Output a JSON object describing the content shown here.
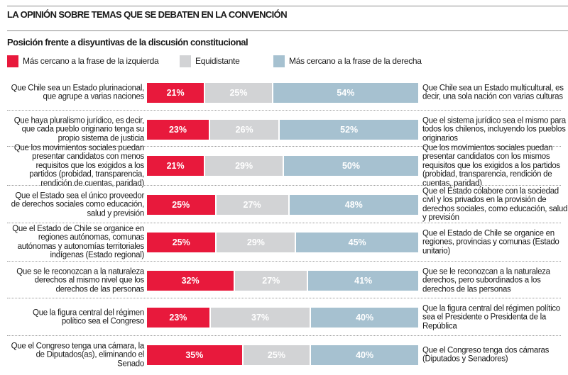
{
  "title": "LA OPINIÓN SOBRE TEMAS QUE SE DEBATEN EN LA CONVENCIÓN",
  "colors": {
    "left": "#e8193c",
    "neutral": "#d2d3d5",
    "right": "#a6c1d0"
  },
  "chart_data": {
    "type": "bar",
    "orientation": "horizontal-stacked-100",
    "title": "Posición frente a disyuntivas de la discusión constitucional",
    "legend": [
      "Más cercano a la frase de la izquierda",
      "Equidistante",
      "Más cercano a la frase de la derecha"
    ],
    "legend_placement": "top-left",
    "rows": [
      {
        "left_text": "Que Chile sea un Estado plurinacional, que agrupe a varias naciones",
        "right_text": "Que Chile sea un Estado multicultural, es decir, una sola nación con varias culturas",
        "values": [
          21,
          25,
          54
        ],
        "labels": [
          "21%",
          "25%",
          "54%"
        ]
      },
      {
        "left_text": "Que haya pluralismo jurídico, es decir, que cada pueblo originario tenga su propio sistema de justicia",
        "right_text": "Que el sistema jurídico sea el mismo para todos los chilenos, incluyendo los pueblos originarios",
        "values": [
          23,
          26,
          52
        ],
        "labels": [
          "23%",
          "26%",
          "52%"
        ]
      },
      {
        "left_text": "Que los movimientos sociales puedan presentar candidatos con menos requisitos que los exigidos a los partidos (probidad, transparencia, rendición de cuentas, paridad)",
        "right_text": "Que los movimientos sociales puedan presentar candidatos con los mismos requisitos que los exigidos a los partidos (probidad, transparencia, rendición de cuentas, paridad)",
        "values": [
          21,
          29,
          50
        ],
        "labels": [
          "21%",
          "29%",
          "50%"
        ]
      },
      {
        "left_text": "Que el Estado sea el único proveedor de derechos sociales como educación, salud y previsión",
        "right_text": "Que el Estado colabore con la sociedad civil y los privados en la provisión de derechos sociales, como educación, salud y previsión",
        "values": [
          25,
          27,
          48
        ],
        "labels": [
          "25%",
          "27%",
          "48%"
        ]
      },
      {
        "left_text": "Que el Estado de Chile se organice en regiones autónomas, comunas autónomas y autonomías territoriales indígenas (Estado regional)",
        "right_text": "Que el Estado de Chile se organice en regiones, provincias y comunas (Estado unitario)",
        "values": [
          25,
          29,
          45
        ],
        "labels": [
          "25%",
          "29%",
          "45%"
        ]
      },
      {
        "left_text": "Que se le reconozcan a la naturaleza derechos al mismo nivel que los derechos de las personas",
        "right_text": "Que se le reconozcan a la naturaleza derechos, pero subordinados a los derechos de las personas",
        "values": [
          32,
          27,
          41
        ],
        "labels": [
          "32%",
          "27%",
          "41%"
        ]
      },
      {
        "left_text": "Que la figura central del régimen político sea el Congreso",
        "right_text": "Que la figura central del régimen político sea el Presidente o Presidenta de la República",
        "values": [
          23,
          37,
          40
        ],
        "labels": [
          "23%",
          "37%",
          "40%"
        ]
      },
      {
        "left_text": "Que el Congreso tenga una cámara, la de Diputados(as), eliminando el Senado",
        "right_text": "Que el Congreso tenga dos cámaras (Diputados y Senadores)",
        "values": [
          35,
          25,
          40
        ],
        "labels": [
          "35%",
          "25%",
          "40%"
        ]
      }
    ]
  }
}
